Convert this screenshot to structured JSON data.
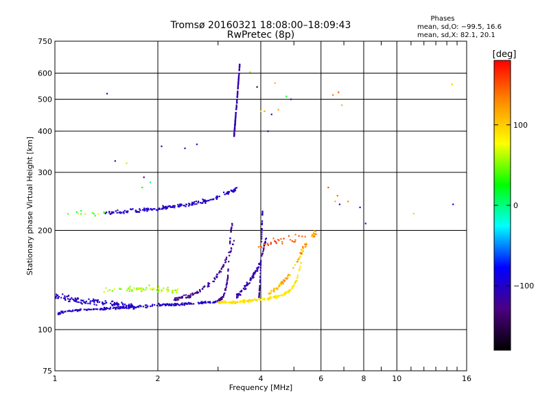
{
  "chart_data": {
    "type": "scatter",
    "title": "Tromsø 20160321 18:08:00–18:09:43",
    "subtitle": "RwPretec (8p)",
    "xlabel": "Frequency [MHz]",
    "ylabel": "Stationary phase Virtual Height [km]",
    "x_scale": "log",
    "y_scale": "log",
    "xlim": [
      1,
      16
    ],
    "ylim": [
      75,
      750
    ],
    "x_ticks": [
      {
        "value": 1,
        "label": "1"
      },
      {
        "value": 2,
        "label": "2"
      },
      {
        "value": 4,
        "label": "4"
      },
      {
        "value": 6,
        "label": "6"
      },
      {
        "value": 8,
        "label": "8"
      },
      {
        "value": 10,
        "label": "10"
      },
      {
        "value": 16,
        "label": "16"
      }
    ],
    "x_minor_ticks": [
      3,
      5,
      7,
      9,
      11,
      12,
      13,
      14,
      15
    ],
    "y_ticks": [
      {
        "value": 75,
        "label": "75"
      },
      {
        "value": 100,
        "label": "100"
      },
      {
        "value": 200,
        "label": "200"
      },
      {
        "value": 300,
        "label": "300"
      },
      {
        "value": 400,
        "label": "400"
      },
      {
        "value": 500,
        "label": "500"
      },
      {
        "value": 600,
        "label": "600"
      },
      {
        "value": 750,
        "label": "750"
      }
    ],
    "x_gridlines": [
      2,
      4,
      6,
      8,
      10
    ],
    "y_gridlines": [
      100,
      200,
      300,
      400,
      500,
      600
    ],
    "grid": true,
    "legend": {
      "title": "Phases",
      "lines": [
        "mean, sd,O: −99.5, 16.6",
        "mean, sd,X:  82.1, 20.1"
      ],
      "placement": "top-right"
    },
    "colorbar": {
      "label": "[deg]",
      "min": -180,
      "max": 180,
      "ticks": [
        {
          "value": 100,
          "label": "100"
        },
        {
          "value": 0,
          "label": "0"
        },
        {
          "value": -100,
          "label": "−100"
        }
      ],
      "colormap": [
        "#000000",
        "#4b0082",
        "#0000ff",
        "#00ffff",
        "#00ff00",
        "#ffff00",
        "#ff8c00",
        "#ff0000"
      ]
    },
    "series": [
      {
        "kind": "trace",
        "f": [
          1.02,
          1.1,
          1.2,
          1.3,
          1.4,
          1.5,
          1.6,
          1.7,
          1.8,
          1.9,
          2.0,
          2.1,
          2.2,
          2.3,
          2.4,
          2.5,
          2.6,
          2.7,
          2.8,
          2.9,
          3.0,
          3.05
        ],
        "h": [
          112,
          114,
          115,
          115,
          116,
          116,
          117,
          117,
          118,
          118,
          119,
          119,
          119,
          119,
          120,
          120,
          120,
          121,
          121,
          121,
          122,
          122
        ],
        "spread": 0.012,
        "n": 230,
        "phase": -100,
        "pspread": 18
      },
      {
        "kind": "trace",
        "f": [
          1.0,
          1.1,
          1.2,
          1.3,
          1.4,
          1.5,
          1.6,
          1.7
        ],
        "h": [
          126,
          124,
          122,
          121,
          120,
          119,
          118,
          118
        ],
        "spread": 0.035,
        "n": 130,
        "phase": -100,
        "pspread": 25
      },
      {
        "kind": "trace",
        "f": [
          1.35,
          1.5,
          1.7,
          1.9,
          2.1,
          2.3
        ],
        "h": [
          130,
          132,
          133,
          133,
          132,
          131
        ],
        "spread": 0.03,
        "n": 60,
        "phase": 60,
        "pspread": 45
      },
      {
        "kind": "trace",
        "f": [
          2.2,
          2.5,
          2.7,
          2.9,
          3.05,
          3.15,
          3.25,
          3.35
        ],
        "h": [
          123,
          127,
          133,
          140,
          150,
          162,
          172,
          186
        ],
        "spread": 0.02,
        "n": 100,
        "phase": -120,
        "pspread": 15
      },
      {
        "kind": "trace",
        "f": [
          3.0,
          3.1,
          3.15,
          3.2,
          3.22,
          3.25,
          3.27,
          3.3
        ],
        "h": [
          122,
          126,
          132,
          142,
          160,
          185,
          200,
          210
        ],
        "spread": 0.018,
        "n": 70,
        "phase": -120,
        "pspread": 15
      },
      {
        "kind": "trace",
        "f": [
          3.0,
          3.3,
          3.6,
          3.9,
          4.2,
          4.6,
          4.9,
          5.1,
          5.25
        ],
        "h": [
          121,
          121,
          122,
          123,
          124,
          127,
          132,
          142,
          160
        ],
        "spread": 0.014,
        "n": 170,
        "phase": 90,
        "pspread": 15
      },
      {
        "kind": "trace",
        "f": [
          3.4,
          3.6,
          3.8,
          3.95,
          4.05,
          4.15
        ],
        "h": [
          126,
          134,
          146,
          156,
          172,
          190
        ],
        "spread": 0.025,
        "n": 90,
        "phase": -110,
        "pspread": 20
      },
      {
        "kind": "trace",
        "f": [
          3.95,
          3.98,
          4.0,
          4.02,
          4.05
        ],
        "h": [
          125,
          140,
          160,
          190,
          235
        ],
        "spread": 0.01,
        "n": 50,
        "phase": -110,
        "pspread": 12
      },
      {
        "kind": "trace",
        "f": [
          4.2,
          4.5,
          4.8,
          5.1,
          5.35
        ],
        "h": [
          128,
          135,
          145,
          160,
          175
        ],
        "spread": 0.02,
        "n": 60,
        "phase": 110,
        "pspread": 30
      },
      {
        "kind": "trace",
        "f": [
          3.9,
          4.3,
          4.7,
          5.0,
          5.4
        ],
        "h": [
          178,
          185,
          188,
          190,
          192
        ],
        "spread": 0.04,
        "n": 30,
        "phase": 150,
        "pspread": 30
      },
      {
        "kind": "trace",
        "f": [
          1.4,
          1.6,
          1.8,
          2.0,
          2.2,
          2.5,
          2.8,
          3.0,
          3.2,
          3.4
        ],
        "h": [
          225,
          228,
          230,
          233,
          236,
          240,
          246,
          252,
          260,
          268
        ],
        "spread": 0.02,
        "n": 180,
        "phase": -100,
        "pspread": 16
      },
      {
        "kind": "trace",
        "f": [
          1.05,
          1.2,
          1.3,
          1.4
        ],
        "h": [
          225,
          226,
          225,
          226
        ],
        "spread": 0.02,
        "n": 12,
        "phase": 30,
        "pspread": 80
      },
      {
        "kind": "trace",
        "f": [
          3.34,
          3.38,
          3.42,
          3.45,
          3.47
        ],
        "h": [
          385,
          450,
          520,
          590,
          640
        ],
        "spread": 0.02,
        "n": 130,
        "phase": -110,
        "pspread": 15
      },
      {
        "kind": "trace",
        "f": [
          5.2,
          5.4,
          5.6,
          5.8
        ],
        "h": [
          170,
          180,
          190,
          198
        ],
        "spread": 0.03,
        "n": 30,
        "phase": 120,
        "pspread": 50
      },
      {
        "kind": "points",
        "f": [
          1.42,
          1.5,
          1.82,
          1.9,
          2.05,
          2.4,
          2.6,
          1.62,
          1.8,
          6.3,
          6.7,
          7.2,
          6.8,
          6.6,
          7.8,
          8.1,
          11.2,
          14.5,
          14.6,
          4.4,
          4.2,
          3.9,
          3.72,
          4.9,
          4.75,
          5.8,
          6.9,
          4.0,
          4.1,
          4.3,
          4.5,
          6.5,
          6.75
        ],
        "h": [
          520,
          325,
          290,
          280,
          360,
          355,
          365,
          320,
          270,
          270,
          255,
          245,
          240,
          245,
          235,
          210,
          225,
          555,
          240,
          560,
          400,
          545,
          605,
          500,
          510,
          195,
          480,
          460,
          460,
          450,
          465,
          515,
          525
        ],
        "phase": [
          -110,
          -110,
          -110,
          0,
          -110,
          -110,
          -110,
          60,
          20,
          150,
          140,
          130,
          -120,
          110,
          -100,
          -100,
          100,
          100,
          -80,
          110,
          -110,
          -150,
          60,
          -100,
          20,
          140,
          110,
          90,
          120,
          -100,
          120,
          140,
          150
        ]
      }
    ]
  }
}
